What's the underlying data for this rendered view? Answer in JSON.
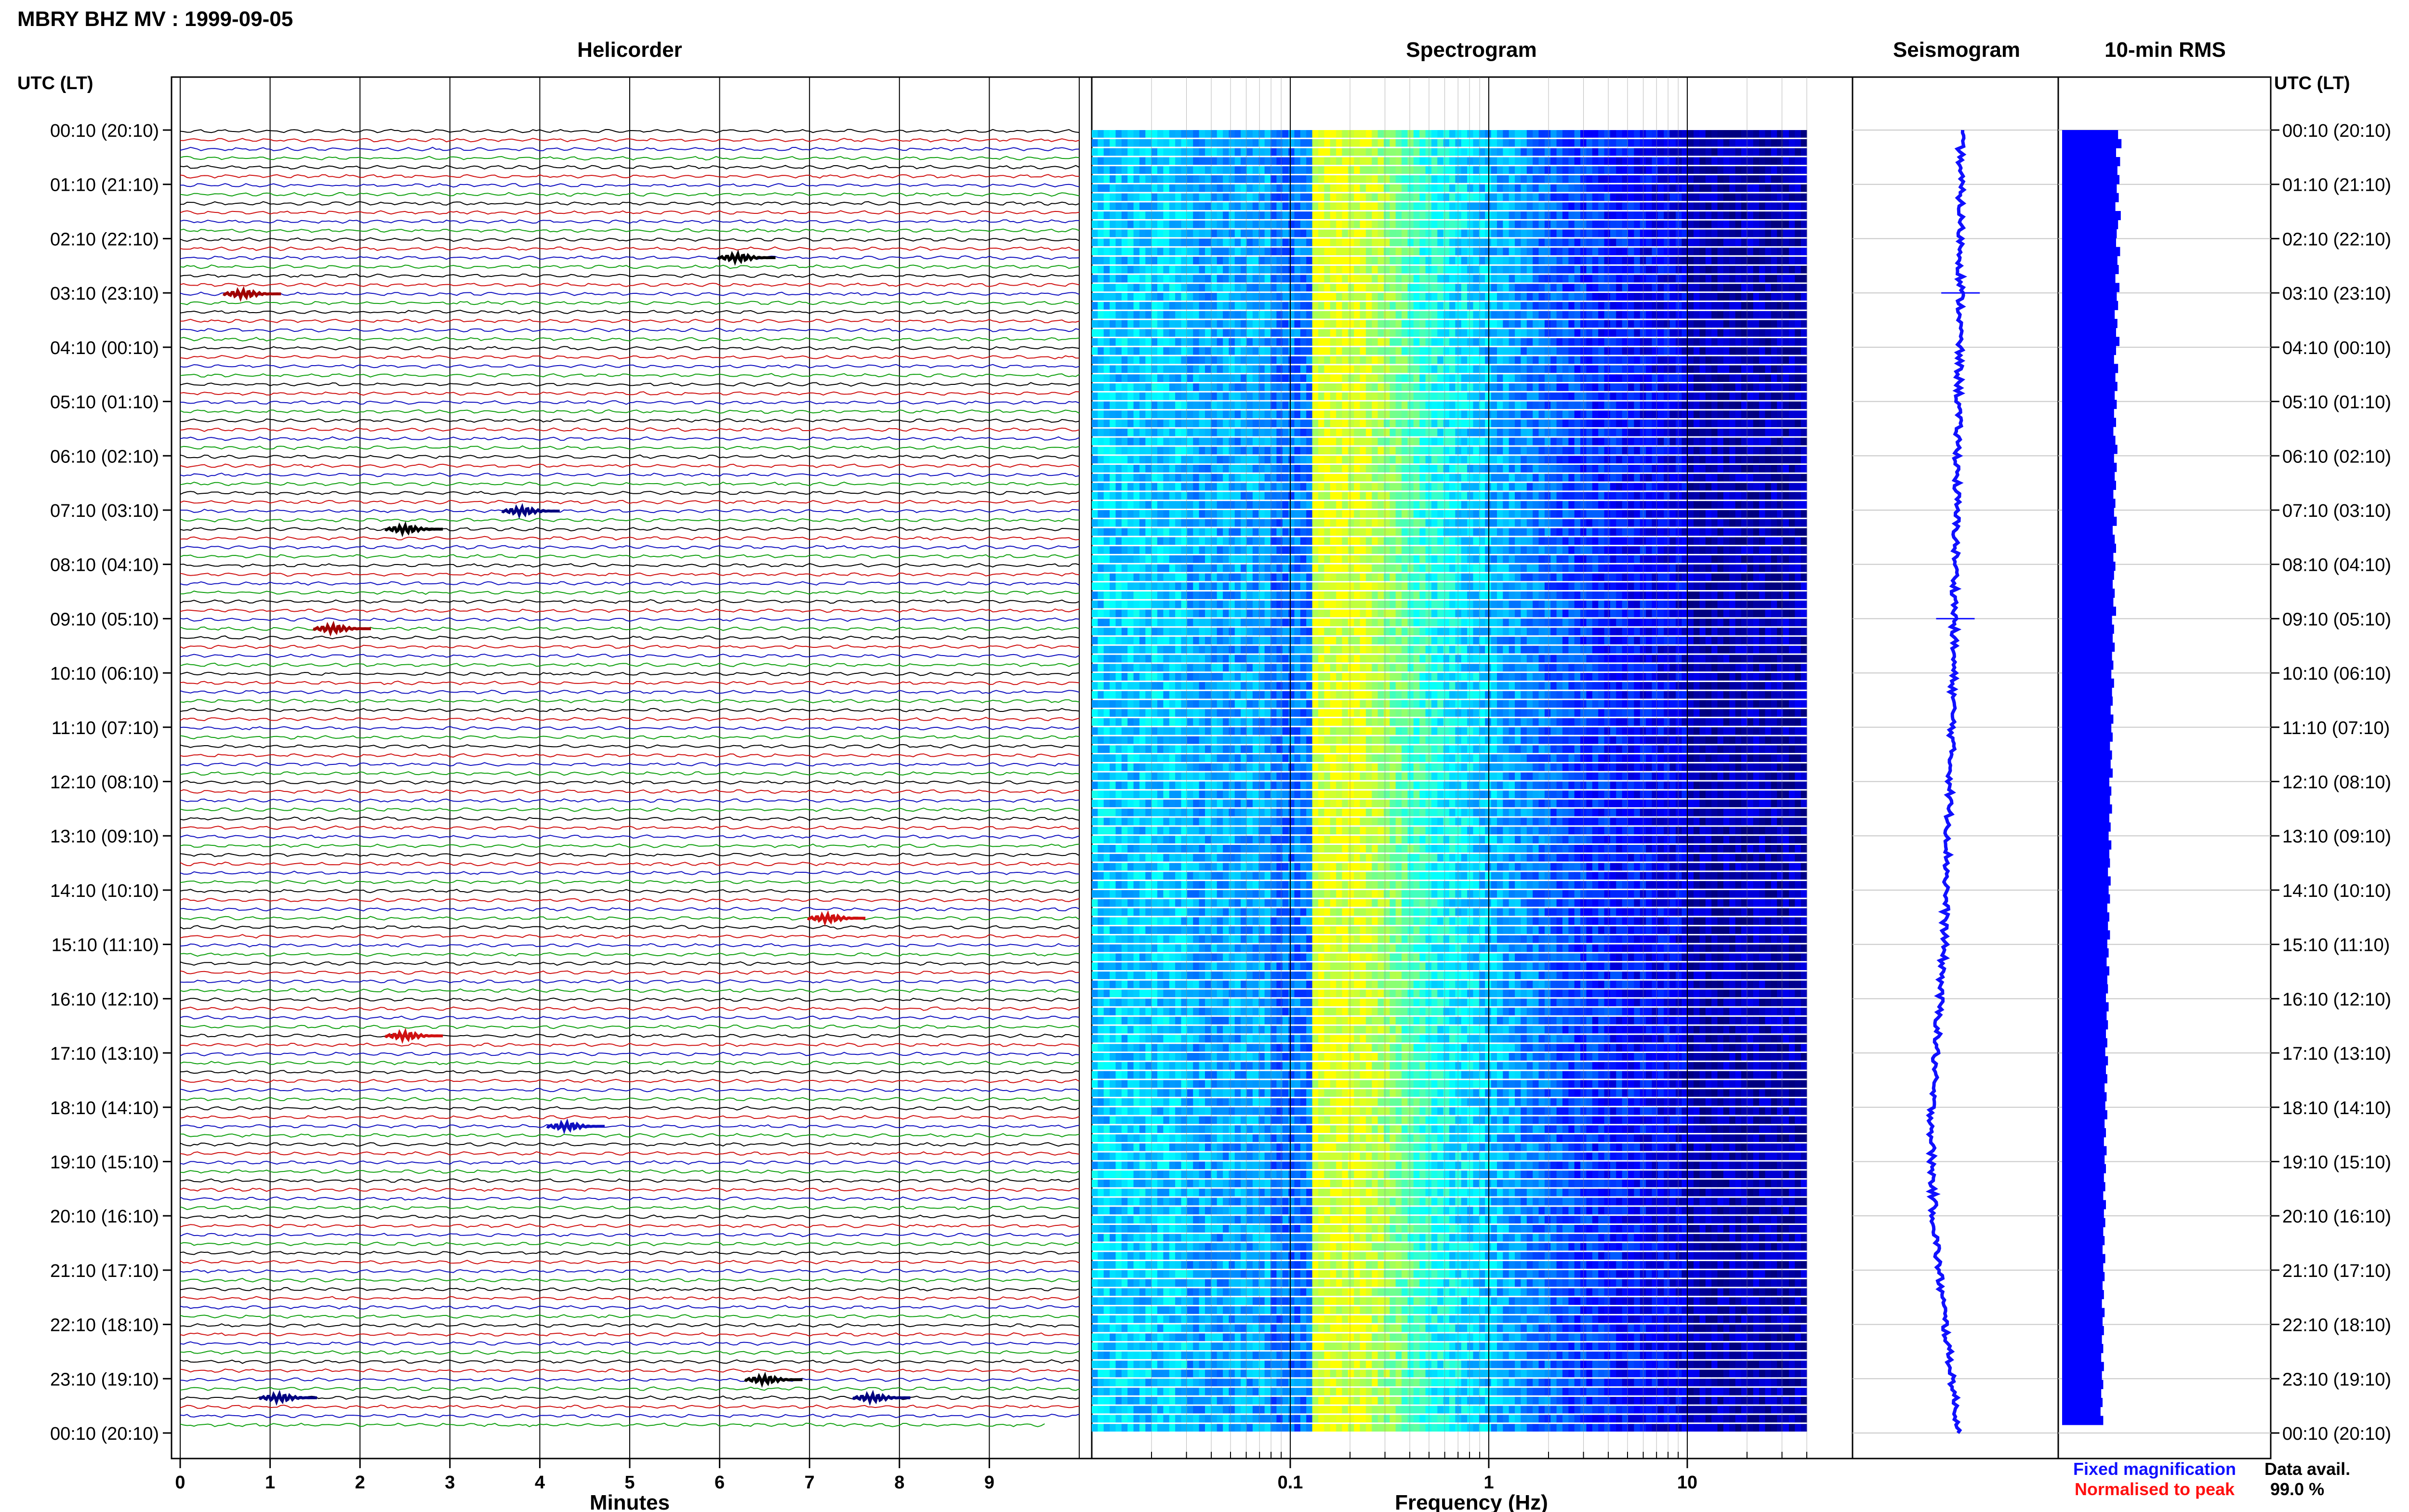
{
  "header": {
    "title": "MBRY BHZ MV : 1999-09-05",
    "utc_lt_left": "UTC (LT)",
    "utc_lt_right": "UTC (LT)"
  },
  "panels": {
    "helicorder": "Helicorder",
    "spectrogram": "Spectrogram",
    "seismogram": "Seismogram",
    "rms": "10-min RMS"
  },
  "time_labels": [
    "00:10 (20:10)",
    "01:10 (21:10)",
    "02:10 (22:10)",
    "03:10 (23:10)",
    "04:10 (00:10)",
    "05:10 (01:10)",
    "06:10 (02:10)",
    "07:10 (03:10)",
    "08:10 (04:10)",
    "09:10 (05:10)",
    "10:10 (06:10)",
    "11:10 (07:10)",
    "12:10 (08:10)",
    "13:10 (09:10)",
    "14:10 (10:10)",
    "15:10 (11:10)",
    "16:10 (12:10)",
    "17:10 (13:10)",
    "18:10 (14:10)",
    "19:10 (15:10)",
    "20:10 (16:10)",
    "21:10 (17:10)",
    "22:10 (18:10)",
    "23:10 (19:10)",
    "00:10 (20:10)"
  ],
  "legend": {
    "fixed": "Fixed magnification",
    "normalised": "Normalised to peak",
    "fixed_color": "#1010ff",
    "normalised_color": "#ff1010",
    "data_avail_label": "Data avail.",
    "data_avail_value": "99.0 %"
  },
  "chart_data": [
    {
      "type": "line",
      "name": "helicorder",
      "title": "Helicorder",
      "xlabel": "Minutes",
      "x_ticks": [
        "0",
        "1",
        "2",
        "3",
        "4",
        "5",
        "6",
        "7",
        "8",
        "9"
      ],
      "xlim": [
        0,
        10
      ],
      "rows": 144,
      "row_colors": [
        "#000000",
        "#d01010",
        "#1010c0",
        "#10a010"
      ],
      "events": [
        {
          "row": 14,
          "minute": 6.3,
          "color": "#000000"
        },
        {
          "row": 18,
          "minute": 0.8,
          "color": "#a00000"
        },
        {
          "row": 42,
          "minute": 3.9,
          "color": "#000080"
        },
        {
          "row": 44,
          "minute": 2.6,
          "color": "#000000"
        },
        {
          "row": 55,
          "minute": 1.8,
          "color": "#a00000"
        },
        {
          "row": 87,
          "minute": 7.3,
          "color": "#d01010"
        },
        {
          "row": 100,
          "minute": 2.6,
          "color": "#d01010"
        },
        {
          "row": 110,
          "minute": 4.4,
          "color": "#1010c0"
        },
        {
          "row": 138,
          "minute": 6.6,
          "color": "#000000"
        },
        {
          "row": 140,
          "minute": 1.2,
          "color": "#000080"
        },
        {
          "row": 140,
          "minute": 7.8,
          "color": "#000080"
        }
      ]
    },
    {
      "type": "heatmap",
      "name": "spectrogram",
      "title": "Spectrogram",
      "xlabel": "Frequency (Hz)",
      "x_scale": "log",
      "x_ticks": [
        "0.1",
        "1",
        "10"
      ],
      "xlim": [
        0.01,
        50
      ],
      "data_fmax": 40,
      "rows": 144,
      "colormap": [
        "#00007f",
        "#0000ff",
        "#007fff",
        "#00ffff",
        "#7fff7f",
        "#ffff00"
      ]
    },
    {
      "type": "line",
      "name": "seismogram",
      "title": "Seismogram",
      "description_points_xlim": [
        -1,
        1
      ],
      "trace_color": "#1010ff",
      "offset": [
        0.05,
        0.05,
        0.05,
        0.05,
        0.04,
        0.03,
        0.02,
        0.01,
        0.0,
        -0.01,
        -0.02,
        -0.03,
        -0.05,
        -0.07,
        -0.09,
        -0.11,
        -0.15,
        -0.19,
        -0.23,
        -0.23,
        -0.21,
        -0.16,
        -0.1,
        -0.03,
        0.03
      ]
    },
    {
      "type": "bar",
      "name": "rms",
      "title": "10-min RMS",
      "bar_color": "#0000ff",
      "values": [
        0.78,
        0.83,
        0.75,
        0.81,
        0.77,
        0.8,
        0.76,
        0.79,
        0.74,
        0.82,
        0.78,
        0.76,
        0.75,
        0.81,
        0.77,
        0.79,
        0.74,
        0.8,
        0.76,
        0.78,
        0.73,
        0.77,
        0.75,
        0.8,
        0.75,
        0.72,
        0.78,
        0.74,
        0.77,
        0.73,
        0.76,
        0.72,
        0.75,
        0.71,
        0.74,
        0.77,
        0.72,
        0.76,
        0.73,
        0.75,
        0.71,
        0.74,
        0.72,
        0.76,
        0.7,
        0.73,
        0.75,
        0.71,
        0.74,
        0.72,
        0.7,
        0.73,
        0.71,
        0.75,
        0.69,
        0.72,
        0.7,
        0.73,
        0.69,
        0.71,
        0.68,
        0.72,
        0.69,
        0.7,
        0.67,
        0.71,
        0.68,
        0.7,
        0.66,
        0.69,
        0.67,
        0.7,
        0.65,
        0.68,
        0.66,
        0.69,
        0.65,
        0.67,
        0.64,
        0.68,
        0.65,
        0.66,
        0.63,
        0.67,
        0.64,
        0.66,
        0.62,
        0.65,
        0.63,
        0.66,
        0.62,
        0.64,
        0.61,
        0.65,
        0.62,
        0.63,
        0.6,
        0.64,
        0.61,
        0.63,
        0.6,
        0.62,
        0.59,
        0.63,
        0.6,
        0.62,
        0.58,
        0.61,
        0.59,
        0.62,
        0.58,
        0.6,
        0.57,
        0.61,
        0.58,
        0.6,
        0.57,
        0.59,
        0.56,
        0.6,
        0.57,
        0.59,
        0.56,
        0.58,
        0.55,
        0.59,
        0.56,
        0.58,
        0.55,
        0.57,
        0.54,
        0.58,
        0.55,
        0.57,
        0.54,
        0.56,
        0.53,
        0.57,
        0.54,
        0.56,
        0.53,
        0.55,
        0.52,
        0.56
      ],
      "ylim": [
        0,
        1
      ]
    }
  ]
}
